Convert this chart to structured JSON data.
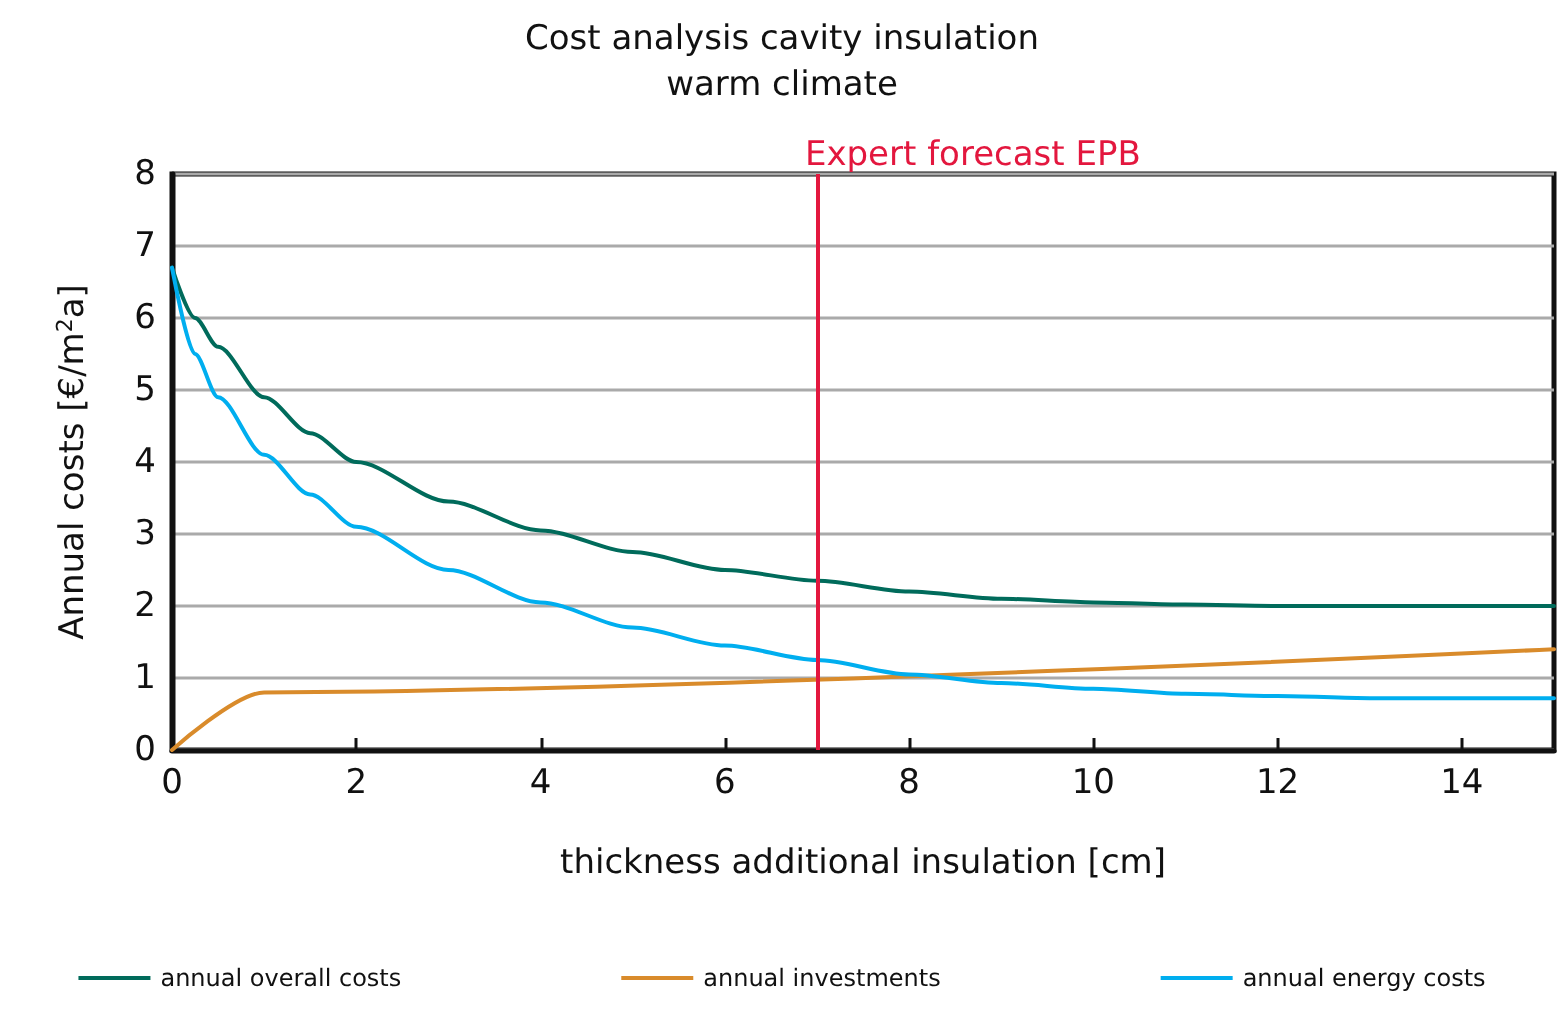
{
  "chart_data": {
    "type": "line",
    "title": "Cost analysis cavity insulation",
    "subtitle": "warm climate",
    "xlabel": "thickness additional insulation [cm]",
    "ylabel": "Annual costs [€/m$^{2}$a]",
    "xlim": [
      0,
      15
    ],
    "xticks": [
      0,
      2,
      4,
      6,
      8,
      10,
      12,
      14
    ],
    "ylim": [
      0,
      8
    ],
    "yticks": [
      0,
      1,
      2,
      3,
      4,
      5,
      6,
      7,
      8
    ],
    "grid": "y",
    "legend": "bottom",
    "marker": "none",
    "line_style": "solid",
    "ref_lines": [
      {
        "axis": "x",
        "value": 7,
        "label": "Expert forecast EPB",
        "color": "#e3173e"
      }
    ],
    "series": [
      {
        "name": "annual overall costs",
        "color": "#006b5b",
        "x": [
          0,
          0.25,
          0.5,
          1,
          1.5,
          2,
          3,
          4,
          5,
          6,
          7,
          8,
          9,
          10,
          11,
          12,
          13,
          14,
          15
        ],
        "values": [
          6.7,
          6.0,
          5.6,
          4.9,
          4.4,
          4.0,
          3.45,
          3.05,
          2.75,
          2.5,
          2.35,
          2.2,
          2.1,
          2.05,
          2.02,
          2.0,
          2.0,
          2.0,
          2.0
        ]
      },
      {
        "name": "annual investments",
        "color": "#d98b2b",
        "x": [
          0,
          1,
          15
        ],
        "values": [
          0,
          0.8,
          1.4
        ]
      },
      {
        "name": "annual energy costs",
        "color": "#00aeef",
        "x": [
          0,
          0.25,
          0.5,
          1,
          1.5,
          2,
          3,
          4,
          5,
          6,
          7,
          8,
          9,
          10,
          11,
          12,
          13,
          14,
          15
        ],
        "values": [
          6.7,
          5.5,
          4.9,
          4.1,
          3.55,
          3.1,
          2.5,
          2.05,
          1.7,
          1.45,
          1.25,
          1.05,
          0.93,
          0.85,
          0.78,
          0.75,
          0.72,
          0.72,
          0.72
        ]
      }
    ]
  }
}
